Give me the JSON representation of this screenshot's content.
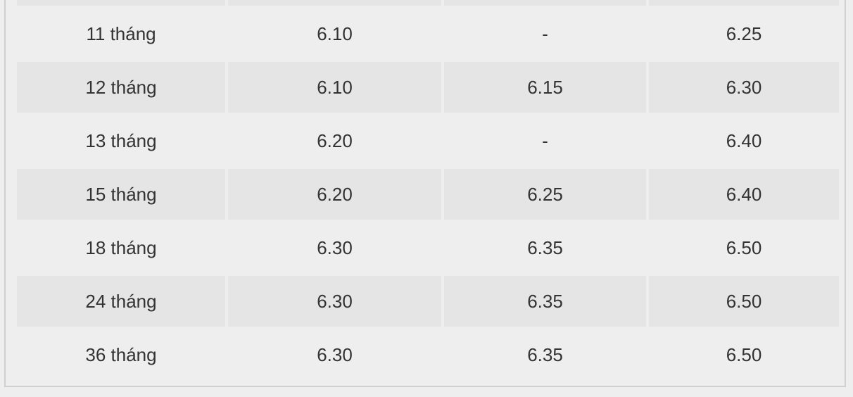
{
  "table": {
    "rows": [
      {
        "term": "11 tháng",
        "col1": "6.10",
        "col2": "-",
        "col3": "6.25"
      },
      {
        "term": "12 tháng",
        "col1": "6.10",
        "col2": "6.15",
        "col3": "6.30"
      },
      {
        "term": "13 tháng",
        "col1": "6.20",
        "col2": "-",
        "col3": "6.40"
      },
      {
        "term": "15 tháng",
        "col1": "6.20",
        "col2": "6.25",
        "col3": "6.40"
      },
      {
        "term": "18 tháng",
        "col1": "6.30",
        "col2": "6.35",
        "col3": "6.50"
      },
      {
        "term": "24 tháng",
        "col1": "6.30",
        "col2": "6.35",
        "col3": "6.50"
      },
      {
        "term": "36 tháng",
        "col1": "6.30",
        "col2": "6.35",
        "col3": "6.50"
      }
    ],
    "colors": {
      "background": "#eeeeee",
      "stripe": "#e5e5e5",
      "border": "#cfcfcf",
      "text": "#333333"
    }
  }
}
